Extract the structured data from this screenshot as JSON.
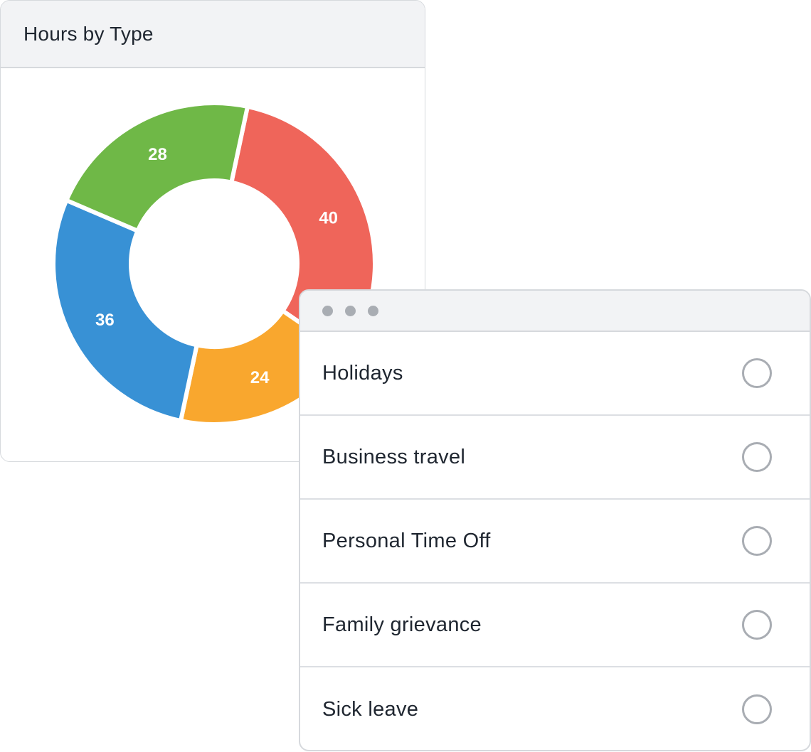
{
  "chart_card": {
    "title": "Hours by Type"
  },
  "chart_data": {
    "type": "pie",
    "title": "Hours by Type",
    "values": [
      40,
      24,
      36,
      28
    ],
    "colors": [
      "#ef655a",
      "#f9a72e",
      "#3891d5",
      "#6fb847"
    ]
  },
  "window_controls": {
    "dots": [
      "window-dot-icon",
      "window-dot-icon",
      "window-dot-icon"
    ],
    "dot_color": "#a9adb3"
  },
  "options": [
    {
      "label": "Holidays",
      "selected": false
    },
    {
      "label": "Business travel",
      "selected": false
    },
    {
      "label": "Personal Time Off",
      "selected": false
    },
    {
      "label": "Family grievance",
      "selected": false
    },
    {
      "label": "Sick leave",
      "selected": false
    }
  ]
}
